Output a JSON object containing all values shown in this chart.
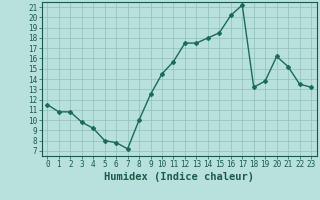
{
  "x": [
    0,
    1,
    2,
    3,
    4,
    5,
    6,
    7,
    8,
    9,
    10,
    11,
    12,
    13,
    14,
    15,
    16,
    17,
    18,
    19,
    20,
    21,
    22,
    23
  ],
  "y": [
    11.5,
    10.8,
    10.8,
    9.8,
    9.2,
    8.0,
    7.8,
    7.2,
    10.0,
    12.5,
    14.5,
    15.7,
    17.5,
    17.5,
    18.0,
    18.5,
    20.2,
    21.2,
    13.2,
    13.8,
    16.2,
    15.2,
    13.5,
    13.2
  ],
  "line_color": "#1a6b5a",
  "marker": "D",
  "markersize": 2,
  "linewidth": 1.0,
  "bg_color": "#b8e0dc",
  "grid_color": "#90bfba",
  "xlabel": "Humidex (Indice chaleur)",
  "xlim": [
    -0.5,
    23.5
  ],
  "ylim": [
    6.5,
    21.5
  ],
  "yticks": [
    7,
    8,
    9,
    10,
    11,
    12,
    13,
    14,
    15,
    16,
    17,
    18,
    19,
    20,
    21
  ],
  "xticks": [
    0,
    1,
    2,
    3,
    4,
    5,
    6,
    7,
    8,
    9,
    10,
    11,
    12,
    13,
    14,
    15,
    16,
    17,
    18,
    19,
    20,
    21,
    22,
    23
  ],
  "tick_color": "#1a5c4a",
  "tick_fontsize": 5.5,
  "xlabel_fontsize": 7.5
}
